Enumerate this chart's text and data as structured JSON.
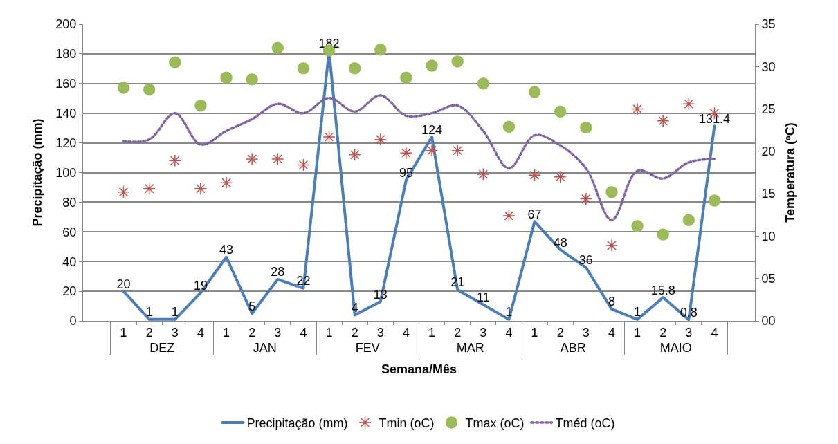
{
  "chart_data": {
    "type": "line",
    "xlabel": "Semana/Mês",
    "ylabel": "Precipitação (mm)",
    "y2label": "Temperatura (ºC)",
    "categories": [
      "1",
      "2",
      "3",
      "4",
      "1",
      "2",
      "3",
      "4",
      "1",
      "2",
      "3",
      "4",
      "1",
      "2",
      "3",
      "4",
      "1",
      "2",
      "3",
      "4",
      "1",
      "2",
      "3",
      "4"
    ],
    "annotations": [
      "DEZ",
      "JAN",
      "FEV",
      "MAR",
      "ABR",
      "MAIO"
    ],
    "ylim": [
      0,
      200
    ],
    "yticks": [
      0,
      20,
      40,
      60,
      80,
      100,
      120,
      140,
      160,
      180,
      200
    ],
    "y2lim": [
      0,
      35
    ],
    "y2ticks": [
      {
        "value": 0,
        "label": "00"
      },
      {
        "value": 5,
        "label": "05"
      },
      10,
      15,
      20,
      25,
      30,
      35
    ],
    "grid": "y",
    "legend": "bottom",
    "series": [
      {
        "name": "Precipitação (mm)",
        "color": "#4a7ebb",
        "line_style": "solid",
        "marker": "none",
        "data_labels": true,
        "values": [
          20,
          1,
          1,
          19,
          43,
          5,
          28,
          22,
          182,
          4,
          13,
          95,
          124,
          21,
          11,
          1,
          67,
          48,
          36,
          8,
          1,
          15.8,
          0.8,
          131.4
        ]
      },
      {
        "name": "Tmin (oC)",
        "type": "scatter",
        "axis": "y2",
        "color": "#c0504d",
        "marker": "cross",
        "values": [
          15.2,
          15.6,
          18.9,
          15.6,
          16.3,
          19.1,
          19.1,
          18.4,
          21.7,
          19.6,
          21.4,
          19.8,
          20.1,
          20.1,
          17.3,
          12.4,
          17.2,
          17.0,
          14.4,
          8.9,
          25.0,
          23.6,
          25.6,
          24.5
        ]
      },
      {
        "name": "Tmax (oC)",
        "type": "scatter",
        "axis": "y2",
        "color": "#9bbb59",
        "marker": "circle",
        "values": [
          27.5,
          27.3,
          30.5,
          25.4,
          28.7,
          28.5,
          32.2,
          29.8,
          31.9,
          29.8,
          32.0,
          28.7,
          30.1,
          30.6,
          28.0,
          22.9,
          27.0,
          24.7,
          22.8,
          15.2,
          11.2,
          10.2,
          11.9,
          14.2
        ]
      },
      {
        "name": "Tméd (oC)",
        "axis": "y2",
        "color": "#8064a2",
        "line_style": "dotted",
        "marker": "none",
        "values": [
          21.2,
          21.4,
          24.5,
          20.8,
          22.4,
          23.8,
          25.6,
          24.5,
          26.3,
          24.7,
          26.6,
          24.2,
          24.5,
          25.4,
          22.4,
          18.0,
          21.9,
          20.7,
          18.0,
          11.9,
          17.7,
          16.8,
          18.7,
          19.1
        ]
      }
    ]
  }
}
